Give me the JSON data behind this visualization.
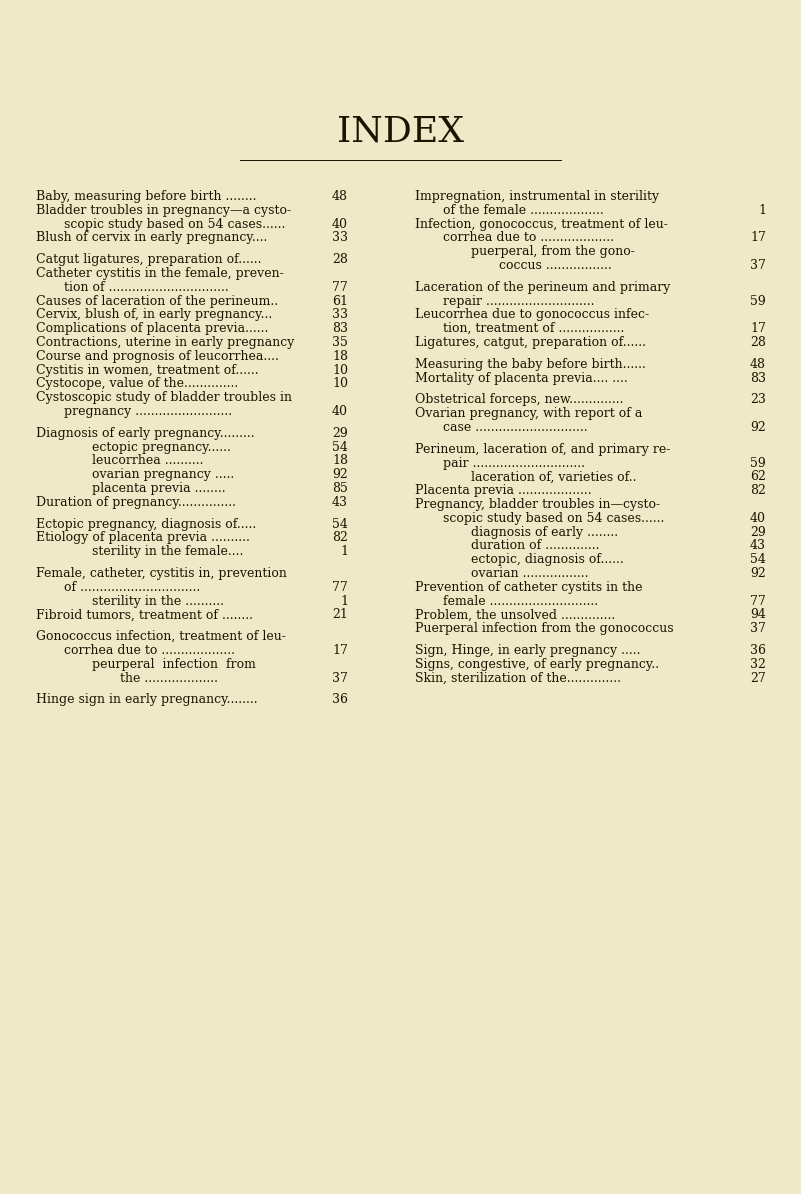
{
  "background_color": "#f0e9c8",
  "title": "INDEX",
  "title_fontsize": 26,
  "text_color": "#1a1500",
  "font_size": 9.0,
  "left_entries": [
    {
      "text": "Baby, measuring before birth ........",
      "num": "48",
      "indent": 0,
      "blank": false
    },
    {
      "text": "Bladder troubles in pregnancy—a cysto-",
      "num": "",
      "indent": 0,
      "blank": false
    },
    {
      "text": "scopic study based on 54 cases......",
      "num": "40",
      "indent": 1,
      "blank": false
    },
    {
      "text": "Blush of cervix in early pregnancy....",
      "num": "33",
      "indent": 0,
      "blank": false
    },
    {
      "text": "",
      "num": "",
      "indent": 0,
      "blank": true
    },
    {
      "text": "Catgut ligatures, preparation of......",
      "num": "28",
      "indent": 0,
      "blank": false
    },
    {
      "text": "Catheter cystitis in the female, preven-",
      "num": "",
      "indent": 0,
      "blank": false
    },
    {
      "text": "tion of ...............................",
      "num": "77",
      "indent": 1,
      "blank": false
    },
    {
      "text": "Causes of laceration of the perineum..",
      "num": "61",
      "indent": 0,
      "blank": false
    },
    {
      "text": "Cervix, blush of, in early pregnancy...",
      "num": "33",
      "indent": 0,
      "blank": false
    },
    {
      "text": "Complications of placenta previa......",
      "num": "83",
      "indent": 0,
      "blank": false
    },
    {
      "text": "Contractions, uterine in early pregnancy",
      "num": "35",
      "indent": 0,
      "blank": false
    },
    {
      "text": "Course and prognosis of leucorrhea....",
      "num": "18",
      "indent": 0,
      "blank": false
    },
    {
      "text": "Cystitis in women, treatment of......",
      "num": "10",
      "indent": 0,
      "blank": false
    },
    {
      "text": "Cystocope, value of the..............",
      "num": "10",
      "indent": 0,
      "blank": false
    },
    {
      "text": "Cystoscopic study of bladder troubles in",
      "num": "",
      "indent": 0,
      "blank": false
    },
    {
      "text": "pregnancy .........................",
      "num": "40",
      "indent": 1,
      "blank": false
    },
    {
      "text": "",
      "num": "",
      "indent": 0,
      "blank": true
    },
    {
      "text": "Diagnosis of early pregnancy.........",
      "num": "29",
      "indent": 0,
      "blank": false
    },
    {
      "text": "ectopic pregnancy......",
      "num": "54",
      "indent": 2,
      "blank": false
    },
    {
      "text": "leucorrhea ..........",
      "num": "18",
      "indent": 2,
      "blank": false
    },
    {
      "text": "ovarian pregnancy .....",
      "num": "92",
      "indent": 2,
      "blank": false
    },
    {
      "text": "placenta previa ........",
      "num": "85",
      "indent": 2,
      "blank": false
    },
    {
      "text": "Duration of pregnancy...............",
      "num": "43",
      "indent": 0,
      "blank": false
    },
    {
      "text": "",
      "num": "",
      "indent": 0,
      "blank": true
    },
    {
      "text": "Ectopic pregnancy, diagnosis of.....",
      "num": "54",
      "indent": 0,
      "blank": false
    },
    {
      "text": "Etiology of placenta previa ..........",
      "num": "82",
      "indent": 0,
      "blank": false
    },
    {
      "text": "sterility in the female....",
      "num": "1",
      "indent": 2,
      "blank": false
    },
    {
      "text": "",
      "num": "",
      "indent": 0,
      "blank": true
    },
    {
      "text": "Female, catheter, cystitis in, prevention",
      "num": "",
      "indent": 0,
      "blank": false
    },
    {
      "text": "of ...............................",
      "num": "77",
      "indent": 1,
      "blank": false
    },
    {
      "text": "sterility in the ..........",
      "num": "1",
      "indent": 2,
      "blank": false
    },
    {
      "text": "Fibroid tumors, treatment of ........",
      "num": "21",
      "indent": 0,
      "blank": false
    },
    {
      "text": "",
      "num": "",
      "indent": 0,
      "blank": true
    },
    {
      "text": "Gonococcus infection, treatment of leu-",
      "num": "",
      "indent": 0,
      "blank": false
    },
    {
      "text": "corrhea due to ...................",
      "num": "17",
      "indent": 1,
      "blank": false
    },
    {
      "text": "peurperal  infection  from",
      "num": "",
      "indent": 2,
      "blank": false
    },
    {
      "text": "the ...................",
      "num": "37",
      "indent": 3,
      "blank": false
    },
    {
      "text": "",
      "num": "",
      "indent": 0,
      "blank": true
    },
    {
      "text": "Hinge sign in early pregnancy........",
      "num": "36",
      "indent": 0,
      "blank": false
    }
  ],
  "right_entries": [
    {
      "text": "Impregnation, instrumental in sterility",
      "num": "",
      "indent": 0,
      "blank": false
    },
    {
      "text": "of the female ...................",
      "num": "1",
      "indent": 1,
      "blank": false
    },
    {
      "text": "Infection, gonococcus, treatment of leu-",
      "num": "",
      "indent": 0,
      "blank": false
    },
    {
      "text": "corrhea due to ...................",
      "num": "17",
      "indent": 1,
      "blank": false
    },
    {
      "text": "puerperal, from the gono-",
      "num": "",
      "indent": 2,
      "blank": false
    },
    {
      "text": "coccus .................",
      "num": "37",
      "indent": 3,
      "blank": false
    },
    {
      "text": "",
      "num": "",
      "indent": 0,
      "blank": true
    },
    {
      "text": "Laceration of the perineum and primary",
      "num": "",
      "indent": 0,
      "blank": false
    },
    {
      "text": "repair ............................",
      "num": "59",
      "indent": 1,
      "blank": false
    },
    {
      "text": "Leucorrhea due to gonococcus infec-",
      "num": "",
      "indent": 0,
      "blank": false
    },
    {
      "text": "tion, treatment of .................",
      "num": "17",
      "indent": 1,
      "blank": false
    },
    {
      "text": "Ligatures, catgut, preparation of......",
      "num": "28",
      "indent": 0,
      "blank": false
    },
    {
      "text": "",
      "num": "",
      "indent": 0,
      "blank": true
    },
    {
      "text": "Measuring the baby before birth......",
      "num": "48",
      "indent": 0,
      "blank": false
    },
    {
      "text": "Mortality of placenta previa.... ....",
      "num": "83",
      "indent": 0,
      "blank": false
    },
    {
      "text": "",
      "num": "",
      "indent": 0,
      "blank": true
    },
    {
      "text": "Obstetrical forceps, new..............",
      "num": "23",
      "indent": 0,
      "blank": false
    },
    {
      "text": "Ovarian pregnancy, with report of a",
      "num": "",
      "indent": 0,
      "blank": false
    },
    {
      "text": "case .............................",
      "num": "92",
      "indent": 1,
      "blank": false
    },
    {
      "text": "",
      "num": "",
      "indent": 0,
      "blank": true
    },
    {
      "text": "Perineum, laceration of, and primary re-",
      "num": "",
      "indent": 0,
      "blank": false
    },
    {
      "text": "pair .............................",
      "num": "59",
      "indent": 1,
      "blank": false
    },
    {
      "text": "laceration of, varieties of..",
      "num": "62",
      "indent": 2,
      "blank": false
    },
    {
      "text": "Placenta previa ...................",
      "num": "82",
      "indent": 0,
      "blank": false
    },
    {
      "text": "Pregnancy, bladder troubles in—cysto-",
      "num": "",
      "indent": 0,
      "blank": false
    },
    {
      "text": "scopic study based on 54 cases......",
      "num": "40",
      "indent": 1,
      "blank": false
    },
    {
      "text": "diagnosis of early ........",
      "num": "29",
      "indent": 2,
      "blank": false
    },
    {
      "text": "duration of ..............",
      "num": "43",
      "indent": 2,
      "blank": false
    },
    {
      "text": "ectopic, diagnosis of......",
      "num": "54",
      "indent": 2,
      "blank": false
    },
    {
      "text": "ovarian .................",
      "num": "92",
      "indent": 2,
      "blank": false
    },
    {
      "text": "Prevention of catheter cystits in the",
      "num": "",
      "indent": 0,
      "blank": false
    },
    {
      "text": "female ............................",
      "num": "77",
      "indent": 1,
      "blank": false
    },
    {
      "text": "Problem, the unsolved ..............",
      "num": "94",
      "indent": 0,
      "blank": false
    },
    {
      "text": "Puerperal infection from the gonococcus",
      "num": "37",
      "indent": 0,
      "blank": false
    },
    {
      "text": "",
      "num": "",
      "indent": 0,
      "blank": true
    },
    {
      "text": "Sign, Hinge, in early pregnancy .....",
      "num": "36",
      "indent": 0,
      "blank": false
    },
    {
      "text": "Signs, congestive, of early pregnancy..",
      "num": "32",
      "indent": 0,
      "blank": false
    },
    {
      "text": "Skin, sterilization of the..............",
      "num": "27",
      "indent": 0,
      "blank": false
    }
  ]
}
